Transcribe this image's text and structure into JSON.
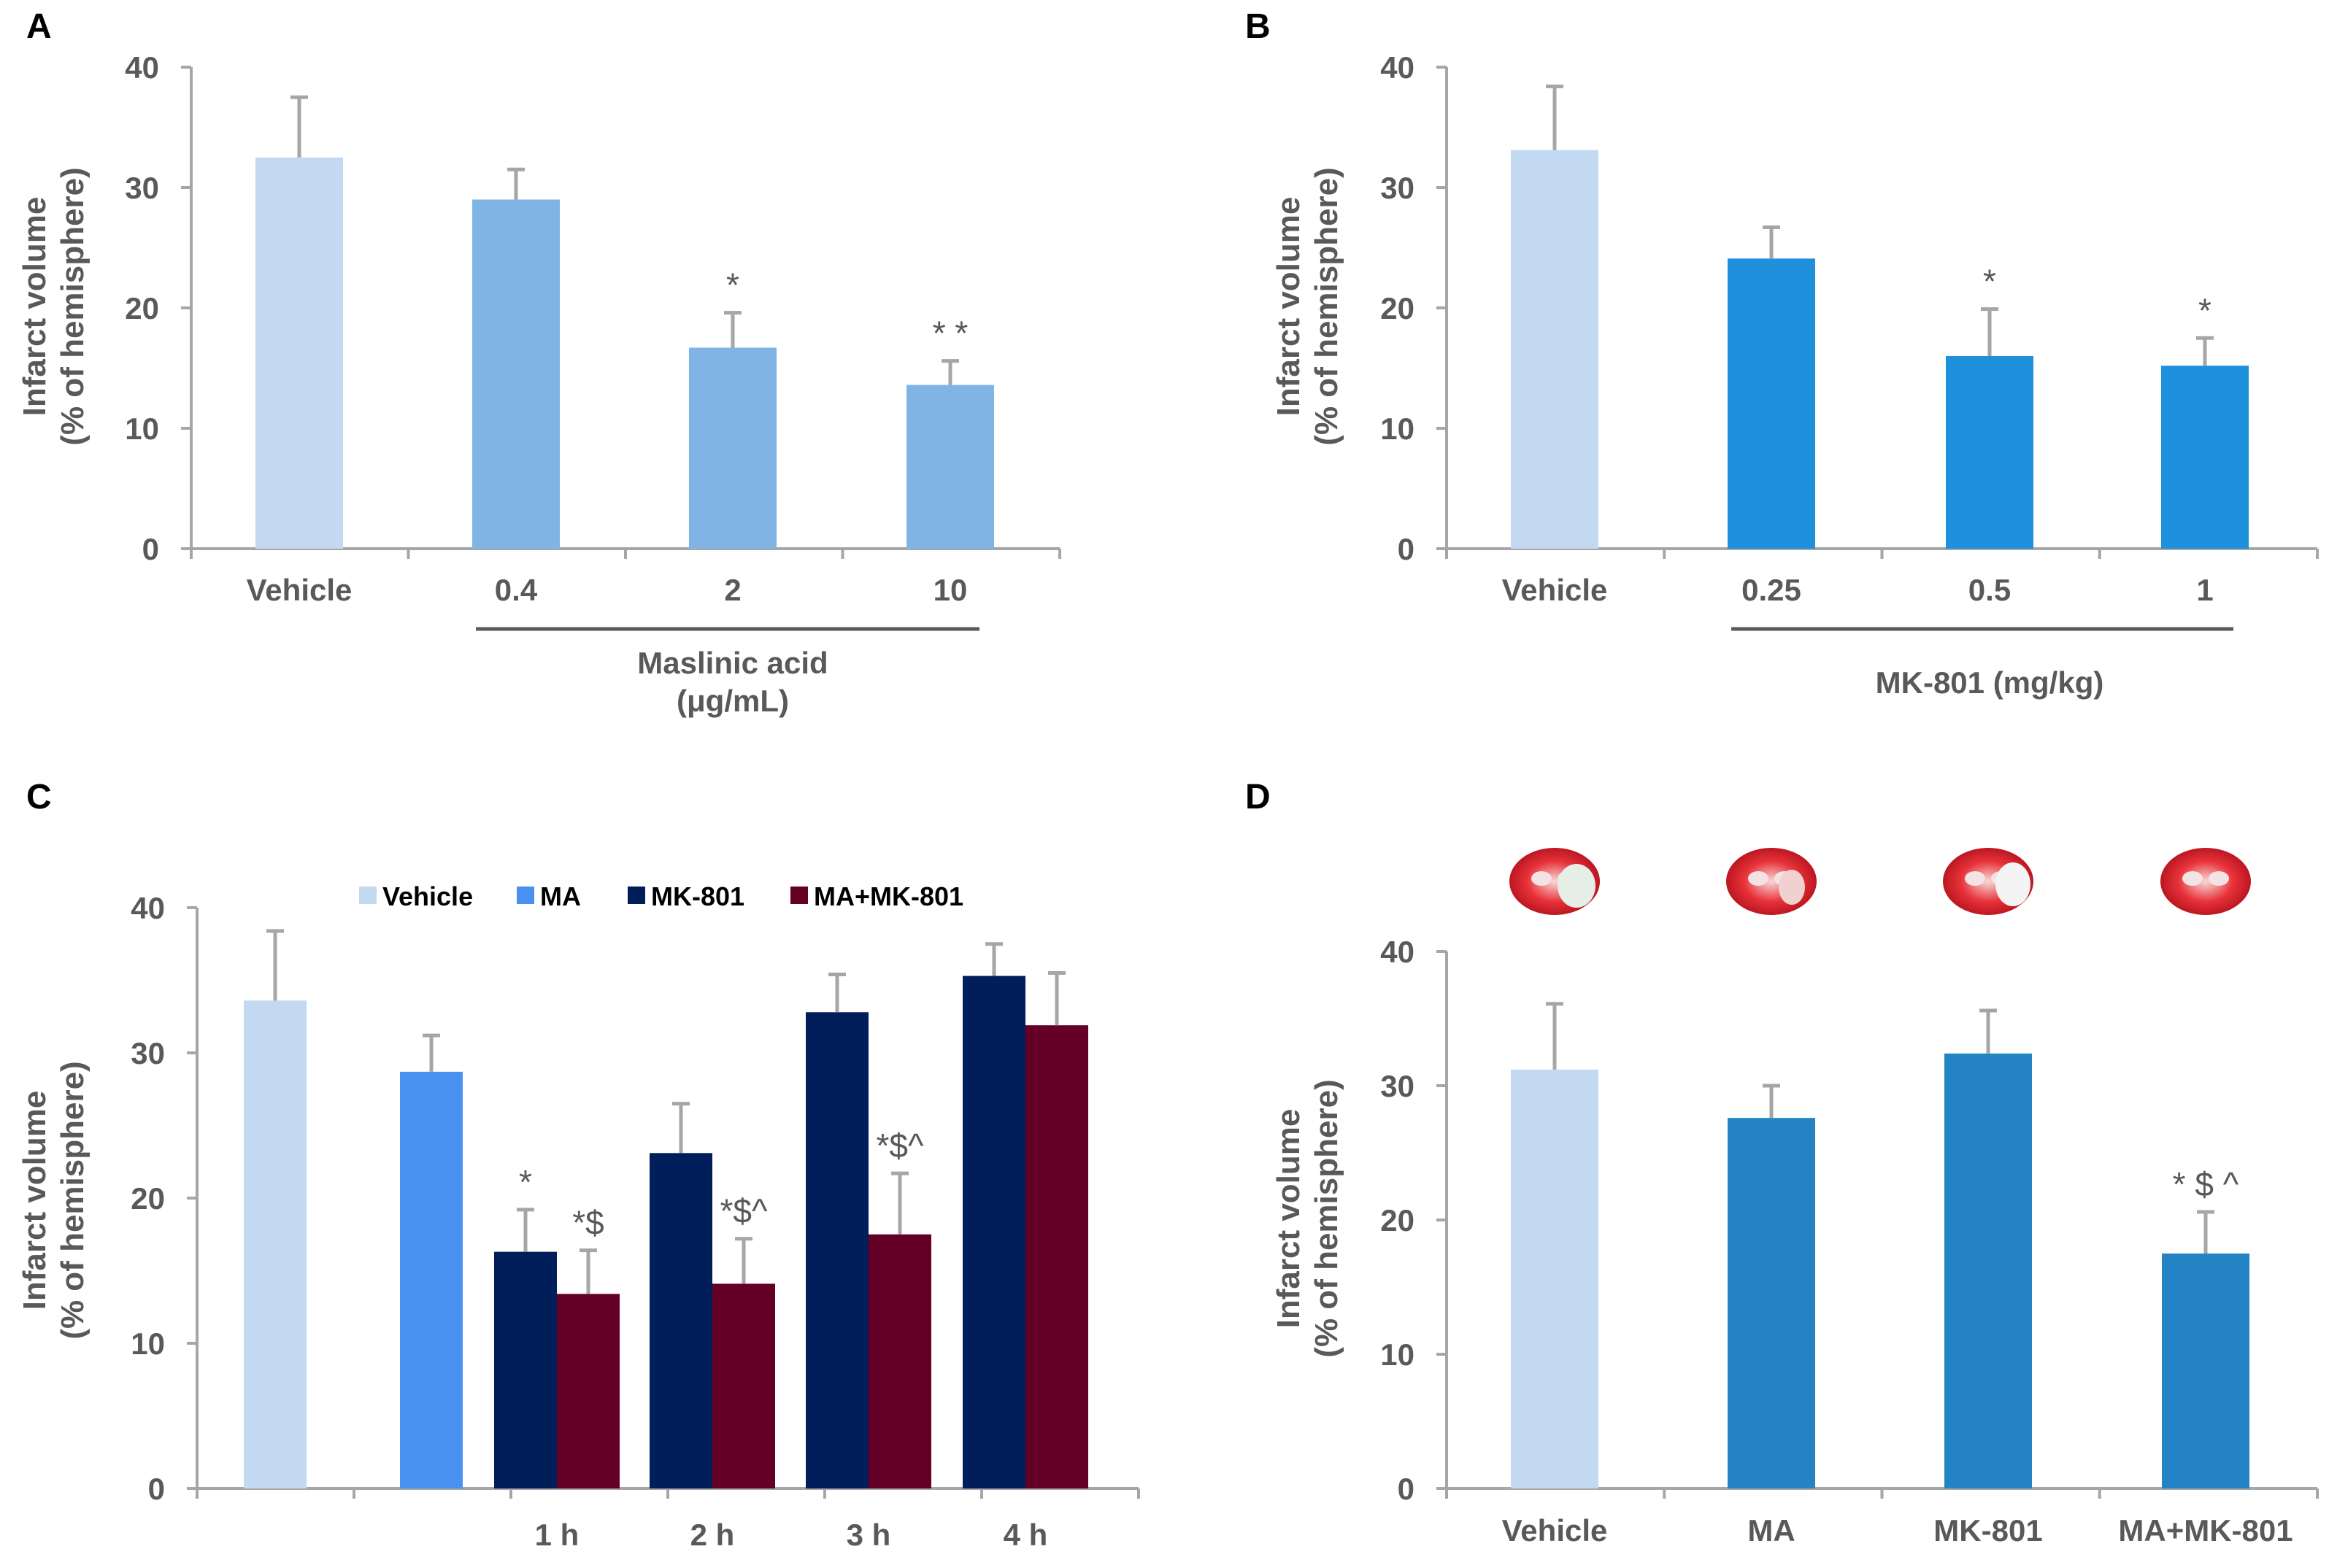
{
  "chart_data": [
    {
      "panel": "A",
      "type": "bar",
      "categories": [
        "Vehicle",
        "0.4",
        "2",
        "10"
      ],
      "values": [
        32.5,
        29.0,
        16.7,
        13.6
      ],
      "errors": [
        5.0,
        2.5,
        2.9,
        2.0
      ],
      "colors": [
        "#c3d9f1",
        "#7fb4e5",
        "#7fb4e5",
        "#7fb4e5"
      ],
      "significance": [
        "",
        "",
        "*",
        "**"
      ],
      "ylabel_lines": [
        "Infarct volume",
        "(% of hemisphere)"
      ],
      "ylim": [
        0,
        40
      ],
      "yticks": [
        0,
        10,
        20,
        30,
        40
      ],
      "group_label_lines": [
        "Maslinic acid",
        "(μg/mL)"
      ],
      "group_span": [
        1,
        3
      ]
    },
    {
      "panel": "B",
      "type": "bar",
      "categories": [
        "Vehicle",
        "0.25",
        "0.5",
        "1"
      ],
      "values": [
        33.1,
        24.1,
        16.0,
        15.2
      ],
      "errors": [
        5.3,
        2.6,
        3.9,
        2.3
      ],
      "colors": [
        "#c3d9f1",
        "#1e90dc",
        "#1e90dc",
        "#1e90dc"
      ],
      "significance": [
        "",
        "",
        "*",
        "*"
      ],
      "ylabel_lines": [
        "Infarct volume",
        "(% of hemisphere)"
      ],
      "ylim": [
        0,
        40
      ],
      "yticks": [
        0,
        10,
        20,
        30,
        40
      ],
      "group_label_lines": [
        "MK-801 (mg/kg)"
      ],
      "group_span": [
        1,
        3
      ]
    },
    {
      "panel": "C",
      "type": "bar",
      "categories": [
        "",
        "",
        "1 h",
        "2 h",
        "3 h",
        "4 h"
      ],
      "series": [
        {
          "name": "Vehicle",
          "color": "#c3d9f1"
        },
        {
          "name": "MA",
          "color": "#4a90f0"
        },
        {
          "name": "MK-801",
          "color": "#001e5a"
        },
        {
          "name": "MA+MK-801",
          "color": "#640025"
        }
      ],
      "bars": [
        {
          "category": 0,
          "series": 0,
          "value": 33.6,
          "error": 4.8,
          "sig": ""
        },
        {
          "category": 1,
          "series": 1,
          "value": 28.7,
          "error": 2.5,
          "sig": ""
        },
        {
          "category": 2,
          "series": 2,
          "value": 16.3,
          "error": 2.9,
          "sig": "*"
        },
        {
          "category": 2,
          "series": 3,
          "value": 13.4,
          "error": 3.0,
          "sig": "*$"
        },
        {
          "category": 3,
          "series": 2,
          "value": 23.1,
          "error": 3.4,
          "sig": ""
        },
        {
          "category": 3,
          "series": 3,
          "value": 14.1,
          "error": 3.1,
          "sig": "*$^"
        },
        {
          "category": 4,
          "series": 2,
          "value": 32.8,
          "error": 2.6,
          "sig": ""
        },
        {
          "category": 4,
          "series": 3,
          "value": 17.5,
          "error": 4.2,
          "sig": "*$^"
        },
        {
          "category": 5,
          "series": 2,
          "value": 35.3,
          "error": 2.2,
          "sig": ""
        },
        {
          "category": 5,
          "series": 3,
          "value": 31.9,
          "error": 3.6,
          "sig": ""
        }
      ],
      "ylabel_lines": [
        "Infarct volume",
        "(% of hemisphere)"
      ],
      "ylim": [
        0,
        40
      ],
      "yticks": [
        0,
        10,
        20,
        30,
        40
      ],
      "legend": "top-center"
    },
    {
      "panel": "D",
      "type": "bar",
      "categories": [
        "Vehicle",
        "MA",
        "MK-801",
        "MA+MK-801"
      ],
      "values": [
        31.2,
        27.6,
        32.4,
        17.5
      ],
      "errors": [
        4.9,
        2.4,
        3.2,
        3.1
      ],
      "colors": [
        "#c3d9f1",
        "#2383c4",
        "#2383c4",
        "#2383c4"
      ],
      "significance": [
        "",
        "",
        "",
        "*$^"
      ],
      "ylabel_lines": [
        "Infarct volume",
        "(% of hemisphere)"
      ],
      "ylim": [
        0,
        40
      ],
      "yticks": [
        0,
        10,
        20,
        30,
        40
      ],
      "brain_images": [
        "brain-slice-vehicle",
        "brain-slice-ma",
        "brain-slice-mk801",
        "brain-slice-ma-mk801"
      ]
    }
  ]
}
